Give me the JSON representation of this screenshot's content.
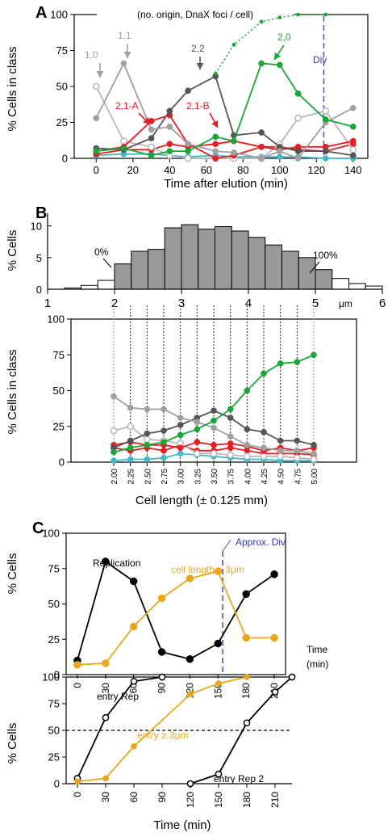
{
  "chart_data": [
    {
      "panel": "A",
      "type": "line",
      "title": "(no. origin, DnaX foci / cell)",
      "xlabel": "Time after elution (min)",
      "ylabel": "% Cells in class",
      "xlim": [
        -12,
        148
      ],
      "ylim": [
        0,
        100
      ],
      "xticks": [
        0,
        20,
        40,
        60,
        80,
        100,
        120,
        140
      ],
      "yticks": [
        0,
        25,
        50,
        75,
        100
      ],
      "x": [
        0,
        15,
        30,
        40,
        50,
        65,
        75,
        90,
        100,
        110,
        125,
        140
      ],
      "series": [
        {
          "name": "1,0",
          "color": "#b8b8b8",
          "hollow": true,
          "values": [
            50,
            12,
            8,
            2,
            0,
            0,
            0,
            0,
            10,
            28,
            33,
            6
          ]
        },
        {
          "name": "1,1",
          "color": "#a0a0a0",
          "hollow": false,
          "values": [
            28,
            66,
            20,
            22,
            10,
            5,
            4,
            0,
            5,
            0,
            25,
            35
          ]
        },
        {
          "name": "2,2",
          "color": "#555555",
          "hollow": false,
          "values": [
            7,
            6,
            14,
            33,
            47,
            57,
            16,
            18,
            8,
            5,
            5,
            2
          ]
        },
        {
          "name": "2,1-A",
          "color": "#e31e24",
          "hollow": false,
          "values": [
            5,
            8,
            26,
            30,
            10,
            0,
            2,
            8,
            6,
            8,
            8,
            12
          ]
        },
        {
          "name": "2,1-B",
          "color": "#e31e24",
          "hollow": false,
          "values": [
            3,
            6,
            6,
            10,
            8,
            10,
            12,
            8,
            8,
            6,
            5,
            10
          ]
        },
        {
          "name": "2,0",
          "color": "#1aa638",
          "hollow": false,
          "values": [
            5,
            7,
            2,
            5,
            5,
            15,
            12,
            66,
            65,
            45,
            27,
            22
          ]
        },
        {
          "name": "dotted",
          "color": "#1aa638",
          "hollow": false,
          "values": [
            null,
            null,
            null,
            null,
            null,
            59,
            79,
            95,
            98,
            100,
            100,
            null
          ]
        },
        {
          "name": "cyan",
          "color": "#45b8c8",
          "hollow": false,
          "values": [
            2,
            3,
            3,
            2,
            1,
            2,
            1,
            1,
            1,
            1,
            0,
            0
          ]
        }
      ],
      "labels": {
        "s10": "1,0",
        "s11": "1,1",
        "s22": "2,2",
        "s21a": "2,1-A",
        "s21b": "2,1-B",
        "s20": "2,0",
        "div": "Div"
      }
    },
    {
      "panel": "B-hist",
      "type": "bar",
      "ylabel": "% Cells",
      "xlim": [
        1,
        6
      ],
      "ylim": [
        0,
        12
      ],
      "xticks": [
        1,
        2,
        3,
        4,
        5,
        6
      ],
      "yticks": [
        0,
        5,
        10
      ],
      "unit": "μm",
      "bin_width": 0.25,
      "bins_start": [
        1.25,
        1.5,
        1.75,
        2.0,
        2.25,
        2.5,
        2.75,
        3.0,
        3.25,
        3.5,
        3.75,
        4.0,
        4.25,
        4.5,
        4.75,
        5.0,
        5.25,
        5.5,
        5.75
      ],
      "values": [
        0.2,
        0.6,
        1.4,
        4.0,
        6.0,
        6.3,
        9.7,
        10.2,
        9.5,
        9.9,
        9.2,
        8.2,
        7.0,
        6.0,
        5.0,
        3.1,
        1.7,
        0.9,
        0.5
      ],
      "filled_from": 2.0,
      "filled_to": 5.25,
      "labels": {
        "p0": "0%",
        "p100": "100%"
      }
    },
    {
      "panel": "B-line",
      "type": "line",
      "xlabel": "Cell length (± 0.125 mm)",
      "ylabel": "% Cells in class",
      "ylim": [
        0,
        100
      ],
      "yticks": [
        0,
        25,
        50,
        75,
        100
      ],
      "x": [
        2.0,
        2.25,
        2.5,
        2.75,
        3.0,
        3.25,
        3.5,
        3.75,
        4.0,
        4.25,
        4.5,
        4.75,
        5.0
      ],
      "categories": [
        "2.00",
        "2.25",
        "2.50",
        "2.75",
        "3.00",
        "3.25",
        "3.50",
        "3.75",
        "4.00",
        "4.25",
        "4.50",
        "4.75",
        "5.00"
      ],
      "series": [
        {
          "name": "1,1",
          "color": "#a0a0a0",
          "hollow": false,
          "values": [
            46,
            38,
            37,
            37,
            31,
            28,
            24,
            18,
            12,
            10,
            8,
            8,
            6
          ]
        },
        {
          "name": "1,0",
          "color": "#b8b8b8",
          "hollow": true,
          "values": [
            22,
            25,
            16,
            15,
            13,
            6,
            6,
            5,
            4,
            4,
            4,
            3,
            2
          ]
        },
        {
          "name": "2,2",
          "color": "#555555",
          "hollow": false,
          "values": [
            10,
            15,
            20,
            22,
            26,
            31,
            36,
            31,
            23,
            21,
            15,
            15,
            12
          ]
        },
        {
          "name": "2,1-A",
          "color": "#e31e24",
          "hollow": false,
          "values": [
            12,
            14,
            12,
            12,
            10,
            14,
            12,
            13,
            11,
            8,
            10,
            8,
            10
          ]
        },
        {
          "name": "2,1-B",
          "color": "#e31e24",
          "hollow": false,
          "values": [
            10,
            8,
            10,
            8,
            12,
            8,
            8,
            10,
            8,
            6,
            6,
            6,
            5
          ]
        },
        {
          "name": "2,0",
          "color": "#1aa638",
          "hollow": false,
          "values": [
            7,
            10,
            12,
            14,
            19,
            23,
            29,
            37,
            50,
            62,
            69,
            70,
            75
          ]
        },
        {
          "name": "cyan",
          "color": "#45b8c8",
          "hollow": false,
          "values": [
            1,
            2,
            2,
            3,
            6,
            5,
            4,
            3,
            2,
            2,
            1,
            1,
            1
          ]
        }
      ]
    },
    {
      "panel": "C-top",
      "type": "line",
      "ylabel": "% Cells",
      "xlabel": "Time (min)",
      "xlim": [
        -12,
        222
      ],
      "ylim": [
        0,
        100
      ],
      "xticks": [
        0,
        30,
        60,
        90,
        120,
        150,
        180,
        210
      ],
      "yticks": [
        0,
        25,
        50,
        75,
        100
      ],
      "x": [
        0,
        30,
        60,
        90,
        120,
        150,
        180,
        210
      ],
      "series": [
        {
          "name": "Replication",
          "color": "#000000",
          "values": [
            10,
            80,
            66,
            16,
            11,
            22,
            57,
            71
          ]
        },
        {
          "name": "cell length ≥ 3μm",
          "color": "#e8a81e",
          "values": [
            7,
            8,
            34,
            54,
            68,
            73,
            26,
            26
          ]
        }
      ],
      "div_x": 155,
      "labels": {
        "div": "Approx. Div",
        "rep": "Replication",
        "len": "cell length ≥ 3μm",
        "time": "Time",
        "min": "(min)"
      }
    },
    {
      "panel": "C-bottom",
      "type": "line",
      "ylabel": "% Cells",
      "xlabel": "Time (min)",
      "xlim": [
        -12,
        228
      ],
      "ylim": [
        0,
        100
      ],
      "xticks": [
        0,
        30,
        60,
        90,
        120,
        150,
        180,
        210
      ],
      "yticks": [
        0,
        25,
        50,
        75,
        100
      ],
      "threshold": 50,
      "series": [
        {
          "name": "entry Rep",
          "color": "#000000",
          "hollow": true,
          "x": [
            0,
            30,
            60,
            90
          ],
          "values": [
            5,
            62,
            96,
            100
          ]
        },
        {
          "name": "entry ≥ 3μm",
          "color": "#e8a81e",
          "hollow": false,
          "x": [
            0,
            30,
            60,
            120,
            150,
            180
          ],
          "values": [
            2,
            5,
            35,
            84,
            94,
            100
          ]
        },
        {
          "name": "entry Rep 2",
          "color": "#000000",
          "hollow": true,
          "x": [
            120,
            150,
            180,
            210,
            228
          ],
          "values": [
            0,
            9,
            57,
            86,
            100
          ]
        }
      ],
      "labels": {
        "rep": "entry Rep",
        "len": "entry ≥ 3μm",
        "rep2": "entry Rep 2"
      }
    }
  ],
  "panels": {
    "a": "A",
    "b": "B",
    "c": "C"
  }
}
